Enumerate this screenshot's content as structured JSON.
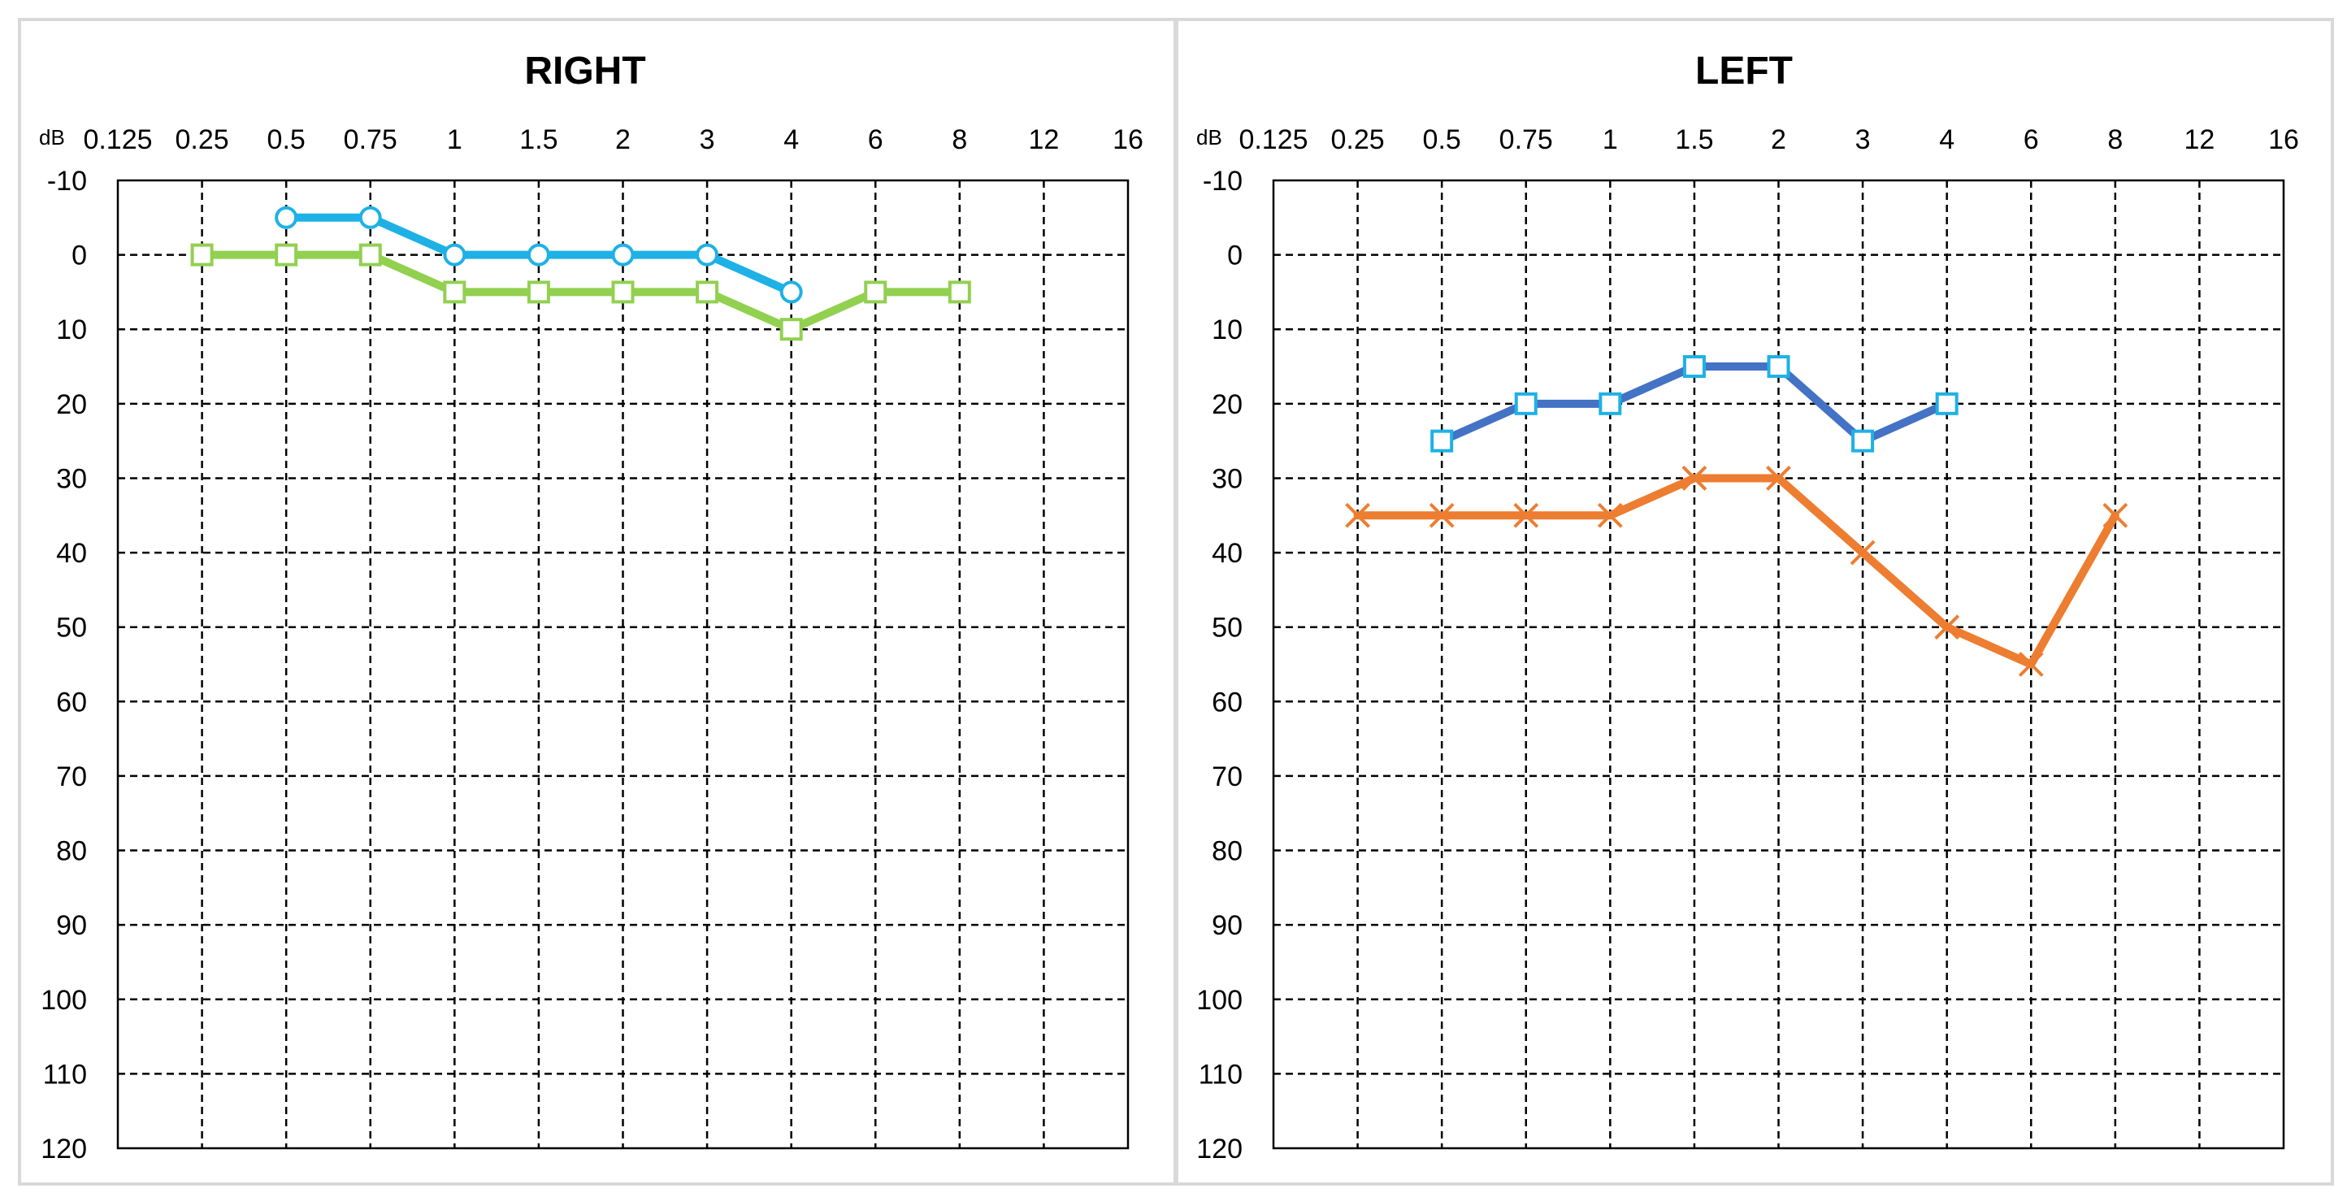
{
  "chart_data": [
    {
      "type": "line",
      "title": "RIGHT",
      "y_unit_label": "dB",
      "x_categories": [
        "0.125",
        "0.25",
        "0.5",
        "0.75",
        "1",
        "1.5",
        "2",
        "3",
        "4",
        "6",
        "8",
        "12",
        "16"
      ],
      "y_ticks": [
        -10,
        0,
        10,
        20,
        30,
        40,
        50,
        60,
        70,
        80,
        90,
        100,
        110,
        120
      ],
      "ylim": [
        -10,
        120
      ],
      "y_inverted": true,
      "grid": true,
      "series": [
        {
          "color": "#1EB1E6",
          "marker": "circle",
          "x": [
            "0.5",
            "0.75",
            "1",
            "1.5",
            "2",
            "3",
            "4"
          ],
          "values": [
            -5,
            -5,
            0,
            0,
            0,
            0,
            5
          ]
        },
        {
          "color": "#92D050",
          "marker": "square",
          "x": [
            "0.25",
            "0.5",
            "0.75",
            "1",
            "1.5",
            "2",
            "3",
            "4",
            "6",
            "8"
          ],
          "values": [
            0,
            0,
            0,
            5,
            5,
            5,
            5,
            10,
            5,
            5
          ]
        }
      ]
    },
    {
      "type": "line",
      "title": "LEFT",
      "y_unit_label": "dB",
      "x_categories": [
        "0.125",
        "0.25",
        "0.5",
        "0.75",
        "1",
        "1.5",
        "2",
        "3",
        "4",
        "6",
        "8",
        "12",
        "16"
      ],
      "y_ticks": [
        -10,
        0,
        10,
        20,
        30,
        40,
        50,
        60,
        70,
        80,
        90,
        100,
        110,
        120
      ],
      "ylim": [
        -10,
        120
      ],
      "y_inverted": true,
      "grid": true,
      "series": [
        {
          "color": "#4472C4",
          "marker_color": "#1EB1E6",
          "marker": "square",
          "x": [
            "0.5",
            "0.75",
            "1",
            "1.5",
            "2",
            "3",
            "4"
          ],
          "values": [
            25,
            20,
            20,
            15,
            15,
            25,
            20
          ]
        },
        {
          "color": "#ED7D31",
          "marker": "cross",
          "x": [
            "0.25",
            "0.5",
            "0.75",
            "1",
            "1.5",
            "2",
            "3",
            "4",
            "6",
            "8"
          ],
          "values": [
            35,
            35,
            35,
            35,
            30,
            30,
            40,
            50,
            55,
            35
          ]
        }
      ]
    }
  ]
}
